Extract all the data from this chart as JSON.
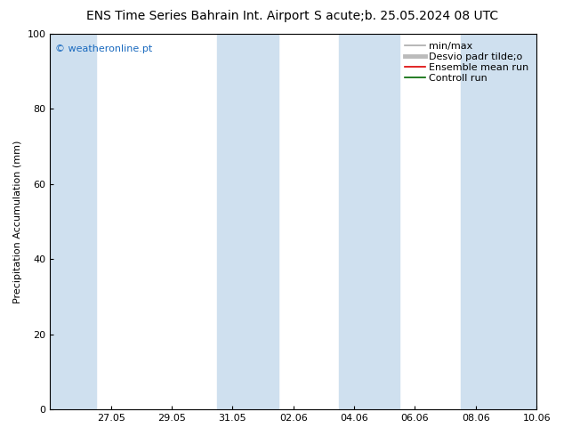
{
  "title_left": "ENS Time Series Bahrain Int. Airport",
  "title_right": "S acute;b. 25.05.2024 08 UTC",
  "ylabel": "Precipitation Accumulation (mm)",
  "watermark": "© weatheronline.pt",
  "ylim": [
    0,
    100
  ],
  "yticks": [
    0,
    20,
    40,
    60,
    80,
    100
  ],
  "xtick_labels": [
    "27.05",
    "29.05",
    "31.05",
    "02.06",
    "04.06",
    "06.06",
    "08.06",
    "10.06"
  ],
  "xlim_days": [
    0,
    16
  ],
  "band_positions": [
    [
      0.0,
      1.5
    ],
    [
      5.5,
      7.5
    ],
    [
      9.5,
      11.5
    ],
    [
      13.5,
      16.0
    ]
  ],
  "band_color": "#cfe0ef",
  "bg_color": "#ffffff",
  "plot_bg_color": "#ffffff",
  "legend_items": [
    {
      "label": "min/max",
      "color": "#aaaaaa",
      "lw": 1.2
    },
    {
      "label": "Desvio padr tilde;o",
      "color": "#bbbbbb",
      "lw": 3.5
    },
    {
      "label": "Ensemble mean run",
      "color": "#dd0000",
      "lw": 1.2
    },
    {
      "label": "Controll run",
      "color": "#006600",
      "lw": 1.2
    }
  ],
  "watermark_color": "#1a6abf",
  "title_fontsize": 10,
  "axis_label_fontsize": 8,
  "tick_fontsize": 8,
  "legend_fontsize": 8
}
